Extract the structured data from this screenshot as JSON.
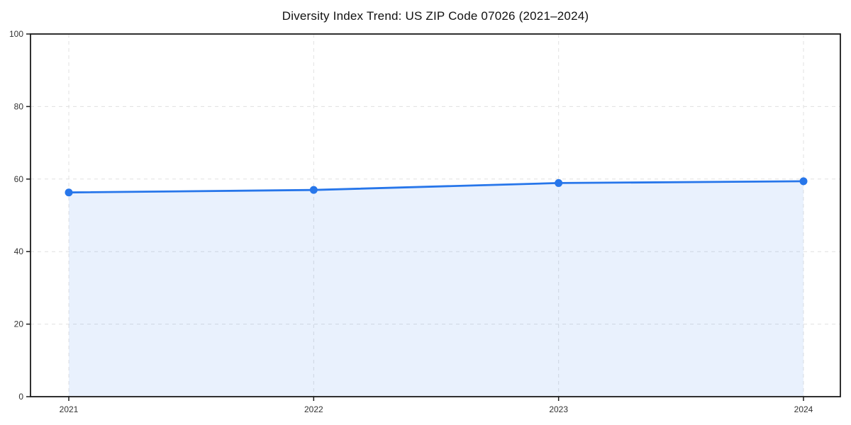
{
  "chart_data": {
    "type": "area",
    "title": "Diversity Index Trend: US ZIP Code 07026 (2021–2024)",
    "xlabel": "",
    "ylabel": "",
    "categories": [
      "2021",
      "2022",
      "2023",
      "2024"
    ],
    "values": [
      56.3,
      57.0,
      58.9,
      59.4
    ],
    "ylim": [
      0,
      100
    ],
    "yticks": [
      0,
      20,
      40,
      60,
      80,
      100
    ],
    "grid": true,
    "legend": "none",
    "colors": {
      "line": "#2776ea",
      "marker": "#2776ea",
      "fill": "rgba(39,118,234,0.10)",
      "grid": "#e1e1e1",
      "axis": "#1a1a1a",
      "tick_label": "#333333",
      "title": "#111111",
      "background": "#ffffff"
    }
  }
}
